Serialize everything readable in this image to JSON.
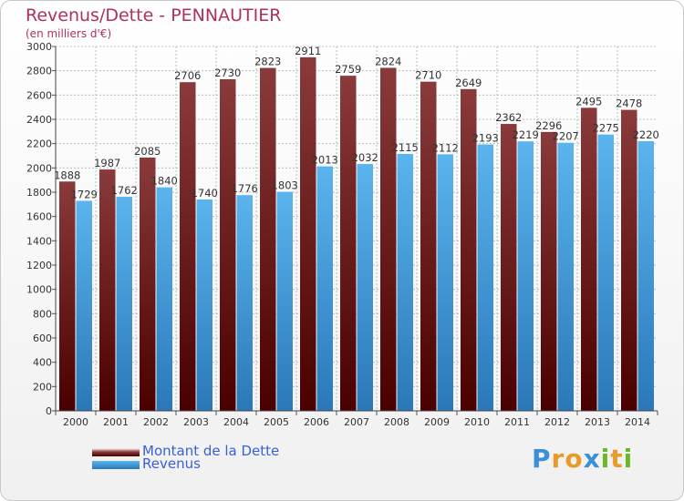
{
  "title": "Revenus/Dette - PENNAUTIER",
  "subtitle": "(en milliers d'€)",
  "colors": {
    "debt_top": "#8a3a3a",
    "debt_bottom": "#4a0000",
    "rev_top": "#5ab4ee",
    "rev_bottom": "#2a78b8",
    "title": "#b0305a",
    "legend_text": "#3a5fd9",
    "grid": "#bcbcbc"
  },
  "legend": {
    "debt_label": "Montant de la Dette",
    "rev_label": "Revenus"
  },
  "brand": {
    "letters": [
      "P",
      "r",
      "o",
      "x",
      "i",
      "t",
      "i"
    ],
    "colors": [
      "#3a8fd6",
      "#e89a2a",
      "#e89a2a",
      "#3a8fd6",
      "#6ab82a",
      "#e89a2a",
      "#6ab82a"
    ]
  },
  "chart_data": {
    "type": "bar",
    "categories": [
      "2000",
      "2001",
      "2002",
      "2003",
      "2004",
      "2005",
      "2006",
      "2007",
      "2008",
      "2009",
      "2010",
      "2011",
      "2012",
      "2013",
      "2014"
    ],
    "series": [
      {
        "name": "Montant de la Dette",
        "values": [
          1888,
          1987,
          2085,
          2706,
          2730,
          2823,
          2911,
          2759,
          2824,
          2710,
          2649,
          2362,
          2296,
          2495,
          2478
        ]
      },
      {
        "name": "Revenus",
        "values": [
          1729,
          1762,
          1840,
          1740,
          1776,
          1803,
          2013,
          2032,
          2115,
          2112,
          2193,
          2219,
          2207,
          2275,
          2220
        ]
      }
    ],
    "ylim": [
      0,
      3000
    ],
    "yticks": [
      0,
      200,
      400,
      600,
      800,
      1000,
      1200,
      1400,
      1600,
      1800,
      2000,
      2200,
      2400,
      2600,
      2800,
      3000
    ],
    "grid": true
  }
}
